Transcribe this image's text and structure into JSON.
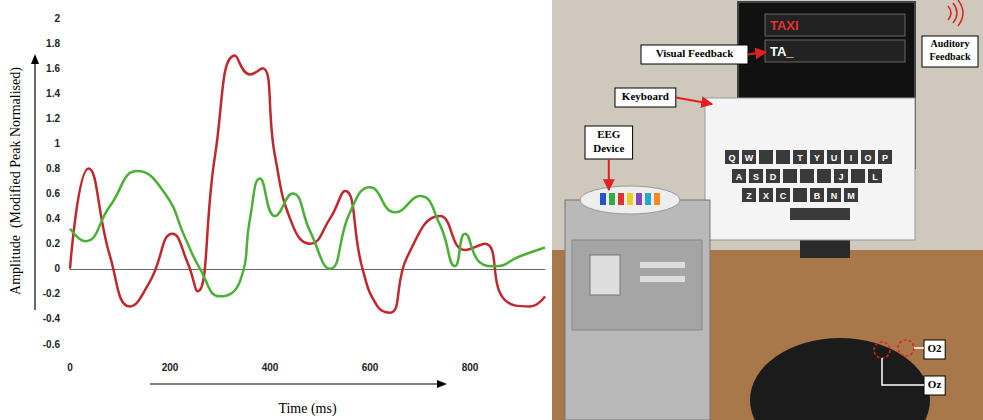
{
  "chart_data": {
    "type": "line",
    "x_label": "Time (ms)",
    "y_label": "Amplitude  (Modified Peak Normalised)",
    "xlim": [
      0,
      950
    ],
    "xticks": [
      0,
      200,
      400,
      600,
      800
    ],
    "ylim": [
      -0.6,
      2
    ],
    "yticks": [
      -0.6,
      -0.4,
      -0.2,
      0,
      0.2,
      0.4,
      0.6,
      0.8,
      1,
      1.2,
      1.4,
      1.6,
      1.8,
      2
    ],
    "grid": false,
    "series": [
      {
        "color": "#c0282d",
        "x": [
          0,
          37,
          80,
          120,
          160,
          205,
          235,
          255,
          290,
          330,
          360,
          385,
          410,
          445,
          480,
          520,
          550,
          585,
          615,
          640,
          675,
          740,
          790,
          830,
          870,
          920,
          950
        ],
        "values": [
          0,
          0.8,
          0.1,
          -0.3,
          -0.1,
          0.28,
          0.05,
          -0.18,
          0.9,
          1.7,
          1.55,
          1.6,
          0.9,
          0.35,
          0.2,
          0.4,
          0.62,
          0,
          -0.3,
          -0.35,
          0.1,
          0.42,
          0.15,
          0.2,
          -0.25,
          -0.3,
          -0.22
        ]
      },
      {
        "color": "#4caf3a",
        "x": [
          0,
          30,
          80,
          135,
          190,
          230,
          260,
          300,
          340,
          360,
          380,
          410,
          445,
          480,
          520,
          560,
          600,
          650,
          700,
          740,
          770,
          790,
          820,
          850,
          900,
          950
        ],
        "values": [
          0.32,
          0.22,
          0.5,
          0.78,
          0.6,
          0.25,
          0,
          -0.22,
          -0.1,
          0.4,
          0.72,
          0.42,
          0.6,
          0.3,
          0,
          0.45,
          0.65,
          0.45,
          0.58,
          0.35,
          0.02,
          0.28,
          0.05,
          0.02,
          0.1,
          0.17
        ]
      }
    ]
  },
  "setup": {
    "screen_text": [
      "TAXI",
      "TA_"
    ],
    "labels": {
      "visual": "Visual Feedback",
      "auditory": "Auditory Feedback",
      "keyboard": "Keyboard",
      "eeg": "EEG Device",
      "o2": "O2",
      "oz": "Oz"
    },
    "keyboard_rows": [
      [
        "Q",
        "W",
        null,
        null,
        "T",
        "Y",
        "U",
        "I",
        "O",
        "P"
      ],
      [
        "A",
        "S",
        "D",
        null,
        null,
        null,
        "J",
        null,
        "L"
      ],
      [
        "Z",
        "X",
        "C",
        null,
        "B",
        "N",
        "M"
      ]
    ]
  }
}
